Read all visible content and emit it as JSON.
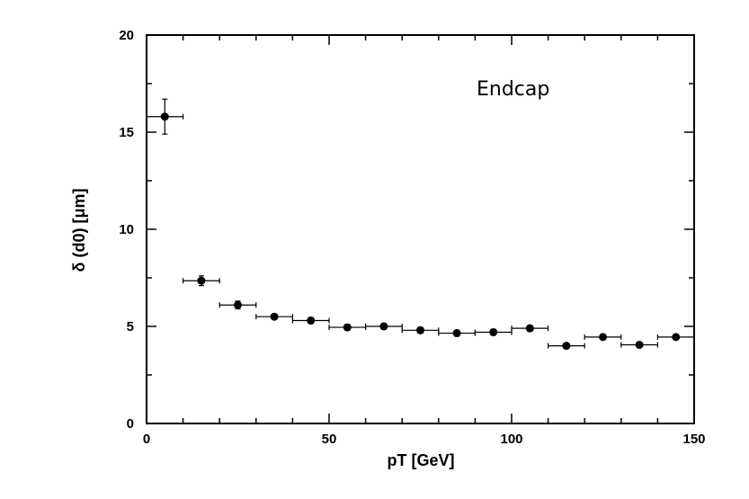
{
  "chart_data": {
    "type": "scatter",
    "xlabel": "pT [GeV]",
    "ylabel": "δ (d0) [μm]",
    "xlim": [
      0,
      150
    ],
    "ylim": [
      0,
      20
    ],
    "xticks": [
      0,
      50,
      100,
      150
    ],
    "yticks": [
      0,
      5,
      10,
      15,
      20
    ],
    "xtick_labels": [
      "0",
      "50",
      "100",
      "150"
    ],
    "ytick_labels": [
      "0",
      "5",
      "10",
      "15",
      "20"
    ],
    "grid": false,
    "annotation": "Endcap",
    "series": [
      {
        "x": [
          5,
          15,
          25,
          35,
          45,
          55,
          65,
          75,
          85,
          95,
          105,
          115,
          125,
          135,
          145
        ],
        "x_err": [
          5,
          5,
          5,
          5,
          5,
          5,
          5,
          5,
          5,
          5,
          5,
          5,
          5,
          5,
          5
        ],
        "y": [
          15.8,
          7.35,
          6.1,
          5.5,
          5.3,
          4.95,
          5.0,
          4.8,
          4.65,
          4.7,
          4.9,
          4.0,
          4.45,
          4.05,
          4.45
        ],
        "y_err": [
          0.9,
          0.25,
          0.2,
          0.12,
          0.15,
          0.15,
          0.15,
          0.15,
          0.15,
          0.15,
          0.15,
          0.12,
          0.12,
          0.12,
          0.12
        ]
      }
    ]
  }
}
